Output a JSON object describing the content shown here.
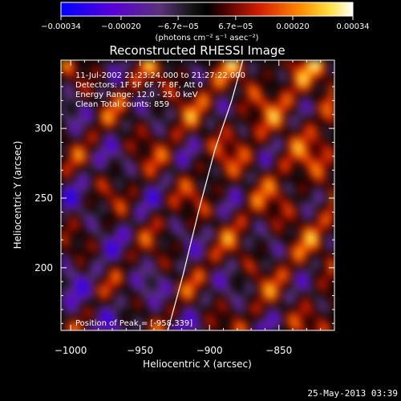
{
  "chart_data": {
    "type": "heatmap",
    "title": "Reconstructed RHESSI Image",
    "xlabel": "Heliocentric X (arcsec)",
    "ylabel": "Heliocentric Y (arcsec)",
    "xlim": [
      -1007,
      -810
    ],
    "ylim": [
      155,
      349
    ],
    "x_ticks": [
      -1000,
      -950,
      -900,
      -850
    ],
    "x_tick_labels": [
      "−1000",
      "−950",
      "−900",
      "−850"
    ],
    "y_ticks": [
      200,
      250,
      300
    ],
    "y_tick_labels": [
      "200",
      "250",
      "300"
    ],
    "colorbar": {
      "min": -0.00034,
      "max": 0.00034,
      "tick_values": [
        -0.00034,
        -0.0002,
        -6.7e-05,
        6.7e-05,
        0.0002,
        0.00034
      ],
      "tick_labels": [
        "−0.00034",
        "−0.00020",
        "−6.7e−05",
        "6.7e−05",
        "0.00020",
        "0.00034"
      ],
      "unit_label": "(photons cm⁻² s⁻¹ asec⁻²)"
    },
    "annotations": [
      "11-Jul-2002 21:23:24.000 to 21:27:22.000",
      "Detectors: 1F 5F 6F 7F 8F, Att 0",
      "Energy Range: 12.0 - 25.0 keV",
      "Clean    Total counts: 859"
    ],
    "peak_label": "Position of Peak = [-958,339]",
    "peak_position": [
      -958,
      339
    ],
    "limb_line": [
      [
        -930,
        155
      ],
      [
        -919,
        195
      ],
      [
        -908,
        240
      ],
      [
        -896,
        285
      ],
      [
        -884,
        320
      ],
      [
        -876,
        349
      ]
    ],
    "colors": {
      "background": "#000000",
      "text": "#ffffff",
      "limb": "#ffffff"
    }
  },
  "footer": {
    "date": "25-May-2013 03:39"
  }
}
